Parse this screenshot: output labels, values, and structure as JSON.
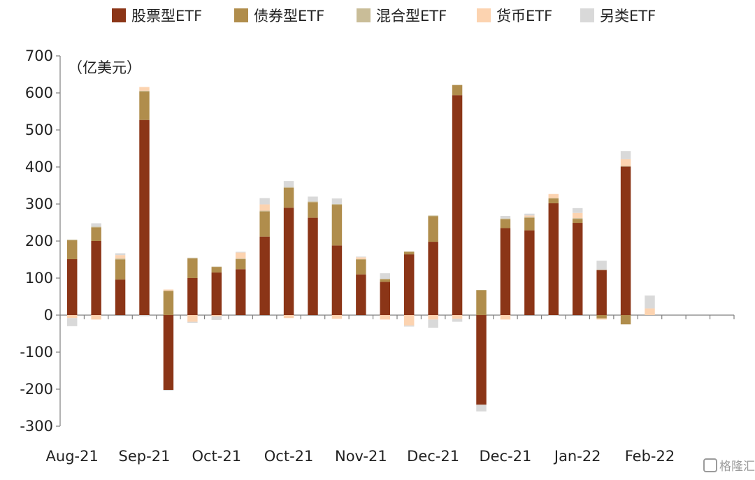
{
  "chart_data": {
    "type": "bar",
    "stacked": true,
    "title": "",
    "xlabel": "",
    "ylabel": "",
    "unit_label": "（亿美元）",
    "ylim": [
      -300,
      700
    ],
    "yticks": [
      700,
      600,
      500,
      400,
      300,
      200,
      100,
      0,
      -100,
      -200,
      -300
    ],
    "grid": false,
    "legend_position": "top",
    "x_tick_labels": [
      "Aug-21",
      "Sep-21",
      "Oct-21",
      "Oct-21",
      "Nov-21",
      "Dec-21",
      "Dec-21",
      "Jan-22",
      "Feb-22"
    ],
    "categories": [
      "1",
      "2",
      "3",
      "4",
      "5",
      "6",
      "7",
      "8",
      "9",
      "10",
      "11",
      "12",
      "13",
      "14",
      "15",
      "16",
      "17",
      "18",
      "19",
      "20",
      "21",
      "22",
      "23",
      "24",
      "25",
      "26",
      "27",
      "28"
    ],
    "series": [
      {
        "name": "股票型ETF",
        "color": "#8B3517",
        "values": [
          151,
          200,
          96,
          527,
          -202,
          100,
          115,
          124,
          212,
          290,
          263,
          188,
          110,
          90,
          164,
          198,
          594,
          -242,
          235,
          229,
          302,
          249,
          122,
          401,
          0,
          0,
          0,
          0
        ]
      },
      {
        "name": "债券型ETF",
        "color": "#B08D4C",
        "values": [
          51,
          37,
          54,
          77,
          65,
          53,
          15,
          27,
          68,
          54,
          42,
          110,
          40,
          7,
          7,
          69,
          27,
          67,
          24,
          34,
          13,
          11,
          -9,
          -25,
          0,
          0,
          0,
          0
        ]
      },
      {
        "name": "混合型ETF",
        "color": "#C9BD98",
        "values": [
          2,
          2,
          3,
          2,
          1,
          2,
          1,
          2,
          2,
          2,
          2,
          2,
          1,
          1,
          1,
          2,
          1,
          1,
          2,
          2,
          1,
          2,
          1,
          2,
          0,
          0,
          0,
          0
        ]
      },
      {
        "name": "货币ETF",
        "color": "#FCD3B0",
        "values": [
          -8,
          -12,
          9,
          10,
          3,
          -18,
          -3,
          16,
          17,
          -8,
          0,
          -10,
          5,
          -12,
          -28,
          -12,
          -10,
          0,
          -12,
          4,
          11,
          14,
          -3,
          18,
          18,
          0,
          0,
          0
        ]
      },
      {
        "name": "另类ETF",
        "color": "#D9D9D9",
        "values": [
          -22,
          9,
          5,
          -3,
          -2,
          -3,
          -10,
          2,
          17,
          16,
          13,
          15,
          2,
          15,
          -3,
          -22,
          -8,
          -18,
          7,
          5,
          -2,
          13,
          24,
          22,
          35,
          0,
          0,
          0
        ]
      }
    ]
  },
  "watermark": {
    "text": "格隆汇"
  }
}
